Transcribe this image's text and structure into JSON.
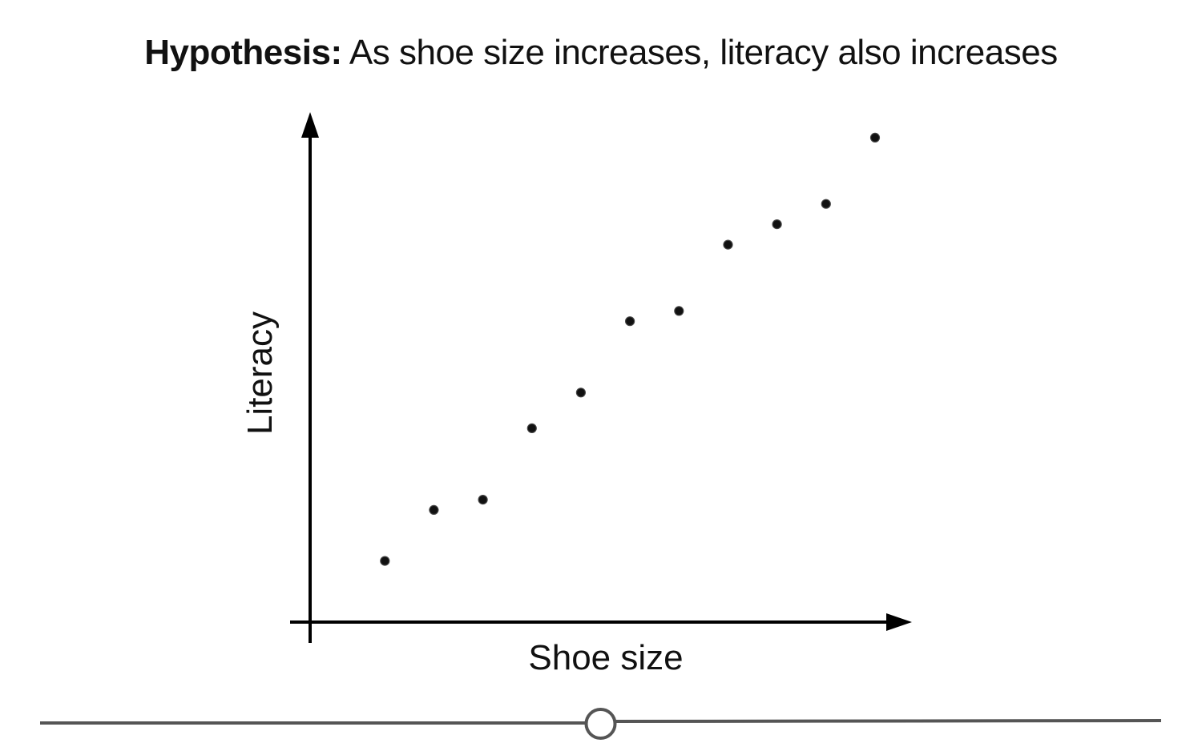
{
  "title": {
    "bold_part": "Hypothesis:",
    "rest": " As shoe size increases, literacy also increases"
  },
  "chart_data": {
    "type": "scatter",
    "xlabel": "Shoe size",
    "ylabel": "Literacy",
    "xlim": [
      0,
      1
    ],
    "ylim": [
      0,
      1
    ],
    "grid": false,
    "legend": "none",
    "series": [
      {
        "x": [
          0.125,
          0.207,
          0.289,
          0.371,
          0.453,
          0.535,
          0.617,
          0.699,
          0.781,
          0.863,
          0.945
        ],
        "y": [
          0.12,
          0.22,
          0.24,
          0.38,
          0.45,
          0.59,
          0.61,
          0.74,
          0.78,
          0.82,
          0.95
        ]
      }
    ],
    "colors": {
      "points": "#111111",
      "axes": "#000000"
    }
  },
  "slider": {
    "value": 0.5,
    "track_color": "#555555",
    "thumb_color": "#555555"
  }
}
